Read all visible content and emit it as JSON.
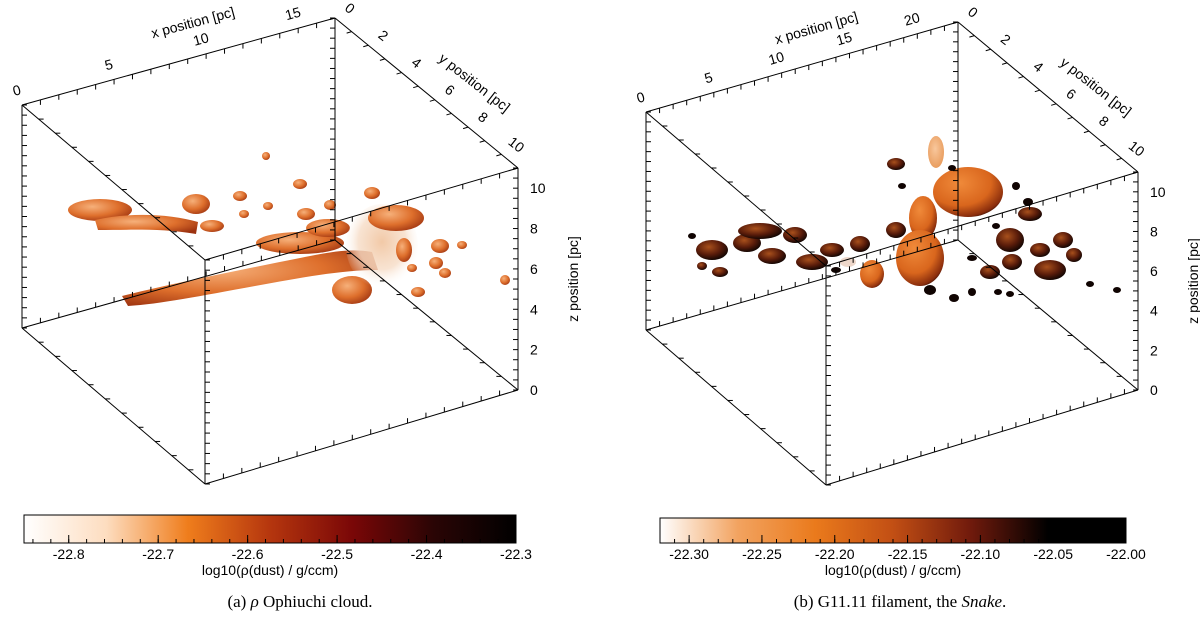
{
  "chart_data": [
    {
      "type": "volume-render",
      "x_axis": {
        "label": "x position [pc]",
        "range": [
          0,
          17
        ],
        "ticks": [
          0,
          5,
          10,
          15
        ]
      },
      "y_axis": {
        "label": "y position [pc]",
        "range": [
          0,
          11
        ],
        "ticks": [
          0,
          2,
          4,
          6,
          8,
          10
        ]
      },
      "z_axis": {
        "label": "z position [pc]",
        "range": [
          0,
          11
        ],
        "ticks": [
          0,
          2,
          4,
          6,
          8,
          10
        ]
      },
      "colorbar": {
        "label": "log10(ρ(dust) / g/ccm)",
        "range": [
          -22.85,
          -22.3
        ],
        "ticks": [
          -22.8,
          -22.7,
          -22.6,
          -22.5,
          -22.4,
          -22.3
        ],
        "tick_labels": [
          "-22.8",
          "-22.7",
          "-22.6",
          "-22.5",
          "-22.4",
          "-22.3"
        ],
        "stops": [
          "#ffffff",
          "#fdddc0",
          "#ef7d1c",
          "#b5360e",
          "#7a0707",
          "#2a0505",
          "#000000"
        ]
      },
      "caption": {
        "prefix": "(a) ",
        "greek": "ρ",
        "text": " Ophiuchi cloud."
      }
    },
    {
      "type": "volume-render",
      "x_axis": {
        "label": "x position [pc]",
        "range": [
          0,
          23
        ],
        "ticks": [
          0,
          5,
          10,
          15,
          20
        ]
      },
      "y_axis": {
        "label": "y position [pc]",
        "range": [
          0,
          11
        ],
        "ticks": [
          0,
          2,
          4,
          6,
          8,
          10
        ]
      },
      "z_axis": {
        "label": "z position [pc]",
        "range": [
          0,
          11
        ],
        "ticks": [
          0,
          2,
          4,
          6,
          8,
          10
        ]
      },
      "colorbar": {
        "label": "log10(ρ(dust) / g/ccm)",
        "range": [
          -22.32,
          -22.0
        ],
        "ticks": [
          -22.3,
          -22.25,
          -22.2,
          -22.15,
          -22.1,
          -22.05,
          -22.0
        ],
        "tick_labels": [
          "-22.30",
          "-22.25",
          "-22.20",
          "-22.15",
          "-22.10",
          "-22.05",
          "-22.00"
        ],
        "stops": [
          "#ffffff",
          "#f2a360",
          "#ea7a1c",
          "#c24f14",
          "#701a0c",
          "#000000",
          "#000000"
        ]
      },
      "caption": {
        "prefix": "(b) ",
        "text": "G11.11 filament, the ",
        "italic": "Snake",
        "suffix": "."
      }
    }
  ]
}
